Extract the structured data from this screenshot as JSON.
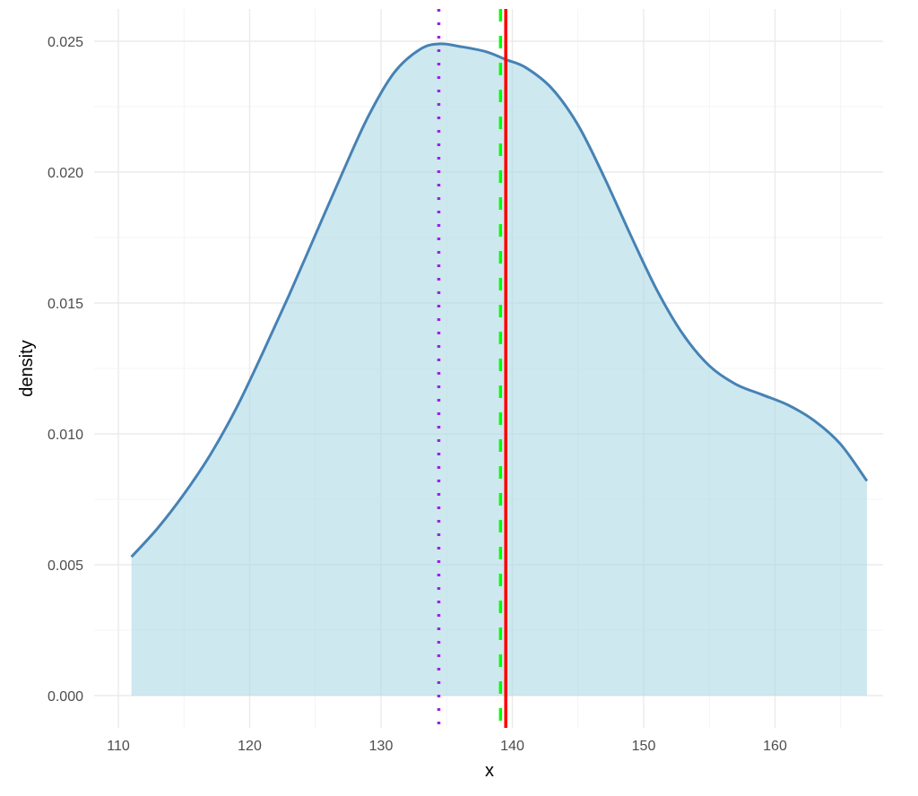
{
  "chart_data": {
    "type": "area",
    "title": "",
    "xlabel": "x",
    "ylabel": "density",
    "xlim": [
      108.5,
      168.5
    ],
    "ylim": [
      -0.0008,
      0.026
    ],
    "x_ticks": [
      110,
      120,
      130,
      140,
      150,
      160
    ],
    "x_tick_labels": [
      "110",
      "120",
      "130",
      "140",
      "150",
      "160"
    ],
    "y_ticks": [
      0.0,
      0.005,
      0.01,
      0.015,
      0.02,
      0.025
    ],
    "y_tick_labels": [
      "0.000",
      "0.005",
      "0.010",
      "0.015",
      "0.020",
      "0.025"
    ],
    "grid": true,
    "legend": "none",
    "series": [
      {
        "name": "density",
        "line_color": "#4682B4",
        "fill_color": "#ADD8E6",
        "fill_opacity": 0.6,
        "x": [
          111,
          113,
          115,
          117,
          119,
          121,
          123,
          125,
          127,
          129,
          131,
          133,
          134.5,
          136,
          138,
          139.5,
          141,
          143,
          145,
          147,
          149,
          151,
          153,
          155,
          157,
          159,
          161,
          163,
          165,
          167
        ],
        "y": [
          0.0053,
          0.0064,
          0.0077,
          0.0092,
          0.011,
          0.0131,
          0.0153,
          0.0176,
          0.0199,
          0.0221,
          0.0238,
          0.0247,
          0.0249,
          0.0248,
          0.0246,
          0.0243,
          0.024,
          0.0232,
          0.0218,
          0.0198,
          0.0176,
          0.0155,
          0.0138,
          0.0126,
          0.0119,
          0.0115,
          0.0111,
          0.0105,
          0.0096,
          0.0082
        ]
      }
    ],
    "vlines": [
      {
        "name": "purple-dotted",
        "x": 134.4,
        "color": "#A020F0",
        "style": "dotted"
      },
      {
        "name": "green-dashed",
        "x": 139.1,
        "color": "#00FF00",
        "style": "dashed"
      },
      {
        "name": "red-solid",
        "x": 139.5,
        "color": "#FF0000",
        "style": "solid"
      }
    ]
  },
  "labels": {
    "xlabel": "x",
    "ylabel": "density"
  }
}
